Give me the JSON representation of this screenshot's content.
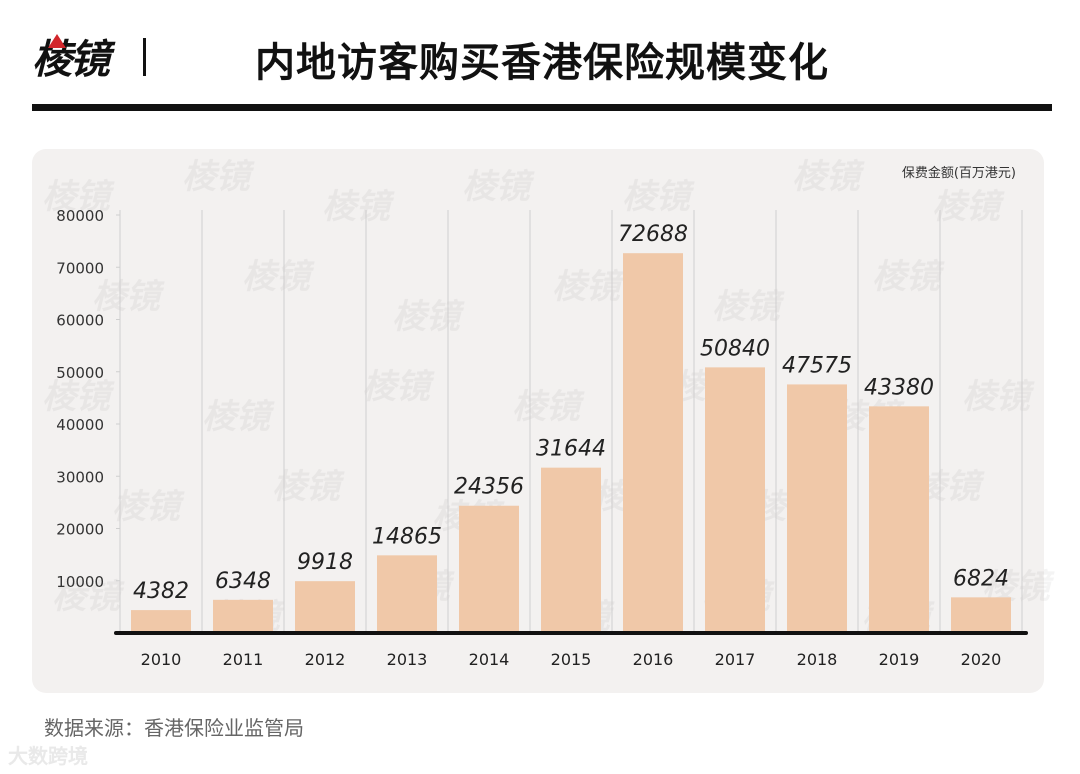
{
  "header": {
    "logo_text": "棱镜",
    "title": "内地访客购买香港保险规模变化"
  },
  "chart_data": {
    "type": "bar",
    "ylabel": "保费金额(百万港元)",
    "ylim": [
      0,
      80000
    ],
    "yticks": [
      10000,
      20000,
      30000,
      40000,
      50000,
      60000,
      70000,
      80000
    ],
    "categories": [
      "2010",
      "2011",
      "2012",
      "2013",
      "2014",
      "2015",
      "2016",
      "2017",
      "2018",
      "2019",
      "2020"
    ],
    "values": [
      4382,
      6348,
      9918,
      14865,
      24356,
      31644,
      72688,
      50840,
      47575,
      43380,
      6824
    ],
    "bar_color": "#f0c8a8",
    "grid": "vertical"
  },
  "watermark_text": "棱镜",
  "source": "数据来源：香港保险业监管局",
  "footer_brand": "大数跨境"
}
